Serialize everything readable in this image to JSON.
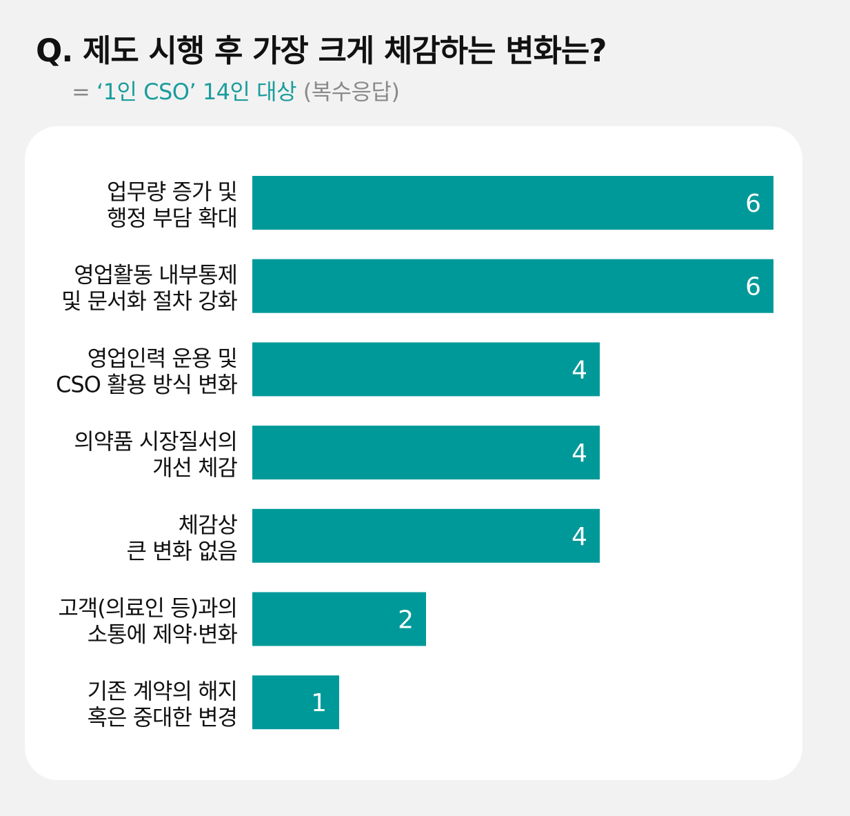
{
  "header": {
    "title": "Q. 제도 시행 후 가장 크게 체감하는 변화는?",
    "subtitle_lead": "= ",
    "subtitle_target": "‘1인 CSO’ 14인 대상",
    "subtitle_note": " (복수응답)"
  },
  "colors": {
    "bar": "#009999",
    "accent_text": "#1a9c9c",
    "muted_text": "#8a8a8a",
    "label_text": "#111111",
    "value_text": "#ffffff"
  },
  "chart_data": {
    "type": "bar",
    "orientation": "horizontal",
    "categories": [
      [
        "업무량 증가 및",
        "행정 부담 확대"
      ],
      [
        "영업활동 내부통제",
        "및 문서화 절차 강화"
      ],
      [
        "영업인력 운용 및",
        "CSO 활용 방식 변화"
      ],
      [
        "의약품 시장질서의",
        "개선 체감"
      ],
      [
        "체감상",
        "큰 변화 없음"
      ],
      [
        "고객(의료인 등)과의",
        "소통에 제약·변화"
      ],
      [
        "기존 계약의 해지",
        "혹은 중대한 변경"
      ]
    ],
    "values": [
      6,
      6,
      4,
      4,
      4,
      2,
      1
    ],
    "xlim": [
      0,
      6
    ],
    "grid": false,
    "legend": "none"
  }
}
